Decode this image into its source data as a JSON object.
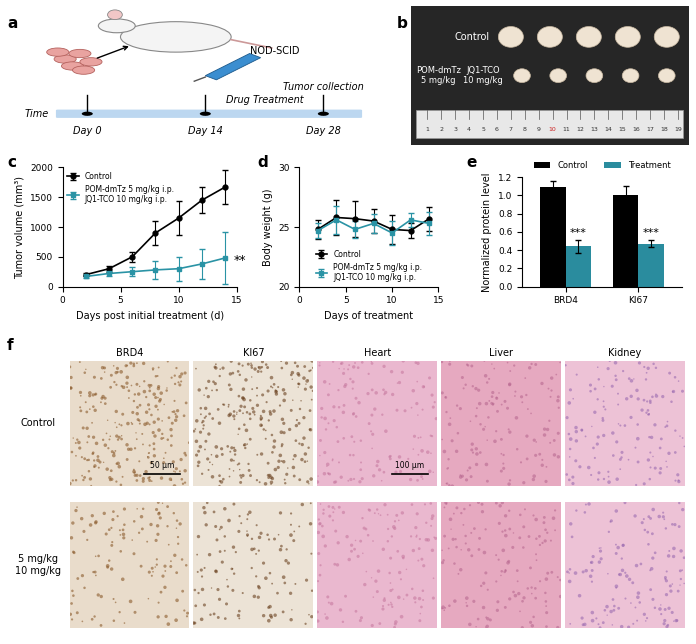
{
  "panel_labels": [
    "a",
    "b",
    "c",
    "d",
    "e",
    "f"
  ],
  "schematic": {
    "mouse_label": "NOD-SCID",
    "time_label": "Time",
    "timepoints": [
      "Day 0",
      "Day 14",
      "Day 28"
    ],
    "phase_label": "Drug Treatment",
    "end_label": "Tumor collection"
  },
  "photo": {
    "row_label": "Control",
    "treatment_labels": [
      "POM-dmTz\n5 mg/kg",
      "JQ1-TCO\n10 mg/kg"
    ],
    "ruler": [
      1,
      2,
      3,
      4,
      5,
      6,
      7,
      8,
      9,
      10,
      11,
      12,
      13,
      14,
      15,
      16,
      17,
      18,
      19
    ]
  },
  "histology": {
    "columns": [
      "BRD4",
      "KI67",
      "Heart",
      "Liver",
      "Kidney"
    ],
    "rows": [
      "Control",
      "5 mg/kg\n10 mg/kg"
    ],
    "scale_bars": [
      "50 μm",
      "100 μm"
    ]
  },
  "chart_data": [
    {
      "type": "line",
      "x": [
        2,
        4,
        6,
        8,
        10,
        12,
        14
      ],
      "xlabel": "Days post initial treatment (d)",
      "ylabel": "Tumor volume (mm³)",
      "xlim": [
        0,
        15
      ],
      "xticks": [
        0,
        5,
        10,
        15
      ],
      "ylim": [
        0,
        2000
      ],
      "yticks": [
        0,
        500,
        1000,
        1500,
        2000
      ],
      "legend": "upper left",
      "series": [
        {
          "name": "Control",
          "color": "#000000",
          "marker": "circle",
          "values": [
            200,
            300,
            500,
            900,
            1150,
            1450,
            1670
          ],
          "error": [
            30,
            50,
            80,
            200,
            280,
            220,
            280
          ]
        },
        {
          "name": "POM-dmTz 5 mg/kg i.p.\nJQ1-TCO 10 mg/kg i.p.",
          "color": "#2a93a5",
          "marker": "square",
          "values": [
            170,
            220,
            250,
            280,
            300,
            380,
            480
          ],
          "error": [
            20,
            40,
            80,
            150,
            200,
            250,
            430
          ],
          "significance": "**"
        }
      ]
    },
    {
      "type": "line",
      "x": [
        2,
        4,
        6,
        8,
        10,
        12,
        14
      ],
      "xlabel": "Days of treatment",
      "ylabel": "Body weight (g)",
      "xlim": [
        0,
        15
      ],
      "xticks": [
        0,
        5,
        10,
        15
      ],
      "ylim": [
        20,
        30
      ],
      "yticks": [
        20,
        25,
        30
      ],
      "legend": "lower center",
      "series": [
        {
          "name": "Control",
          "color": "#000000",
          "marker": "circle",
          "values": [
            24.8,
            25.8,
            25.7,
            25.5,
            24.8,
            24.7,
            25.7
          ],
          "error": [
            0.8,
            1.5,
            1.5,
            1.0,
            1.2,
            0.6,
            1.0
          ]
        },
        {
          "name": "POM-dmTz 5 mg/kg i.p.\nJQ1-TCO 10 mg/kg i.p.",
          "color": "#2a93a5",
          "marker": "square",
          "values": [
            24.7,
            25.6,
            24.8,
            25.3,
            24.5,
            25.6,
            25.3
          ],
          "error": [
            0.6,
            1.2,
            0.7,
            0.8,
            1.0,
            0.6,
            1.0
          ]
        }
      ]
    },
    {
      "type": "bar",
      "categories": [
        "BRD4",
        "KI67"
      ],
      "ylabel": "Normalized protein level",
      "ylim": [
        0,
        1.2
      ],
      "yticks": [
        {
          "value": 0,
          "label": "0.0"
        },
        0.2,
        0.4,
        0.6,
        0.8,
        {
          "value": 1,
          "label": "1.0"
        },
        1.2
      ],
      "legend": "top",
      "series": [
        {
          "name": "Control",
          "color": "#000000",
          "values": [
            1.09,
            1.0
          ],
          "error": [
            0.07,
            0.1
          ]
        },
        {
          "name": "Treatment",
          "color": "#2a8c9e",
          "values": [
            0.44,
            0.47
          ],
          "error": [
            0.07,
            0.04
          ],
          "significance": [
            "***",
            "***"
          ]
        }
      ]
    }
  ]
}
